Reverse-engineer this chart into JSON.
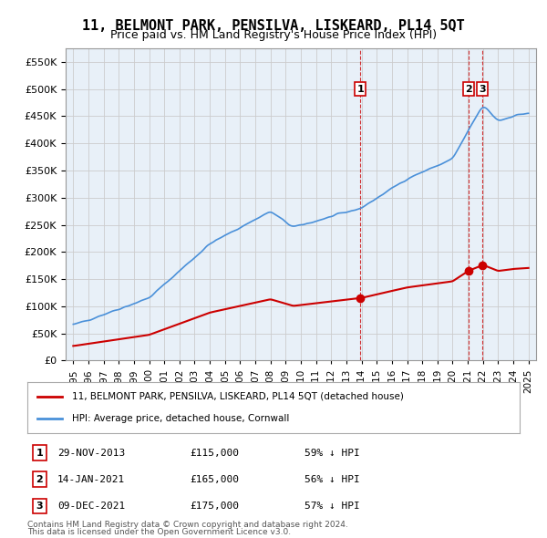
{
  "title": "11, BELMONT PARK, PENSILVA, LISKEARD, PL14 5QT",
  "subtitle": "Price paid vs. HM Land Registry's House Price Index (HPI)",
  "hpi_label": "HPI: Average price, detached house, Cornwall",
  "property_label": "11, BELMONT PARK, PENSILVA, LISKEARD, PL14 5QT (detached house)",
  "footer1": "Contains HM Land Registry data © Crown copyright and database right 2024.",
  "footer2": "This data is licensed under the Open Government Licence v3.0.",
  "transactions": [
    {
      "num": 1,
      "date": "29-NOV-2013",
      "price": 115000,
      "pct": "59%",
      "dir": "↓",
      "x_year": 2013.91
    },
    {
      "num": 2,
      "date": "14-JAN-2021",
      "price": 165000,
      "pct": "56%",
      "dir": "↓",
      "x_year": 2021.04
    },
    {
      "num": 3,
      "date": "09-DEC-2021",
      "price": 175000,
      "pct": "57%",
      "dir": "↓",
      "x_year": 2021.94
    }
  ],
  "hpi_color": "#4a90d9",
  "price_color": "#cc0000",
  "transaction_marker_color": "#cc0000",
  "dashed_line_color": "#cc0000",
  "background_color": "#ffffff",
  "grid_color": "#cccccc",
  "ylim": [
    0,
    575000
  ],
  "yticks": [
    0,
    50000,
    100000,
    150000,
    200000,
    250000,
    300000,
    350000,
    400000,
    450000,
    500000,
    550000
  ],
  "xlim_start": 1994.5,
  "xlim_end": 2025.5
}
